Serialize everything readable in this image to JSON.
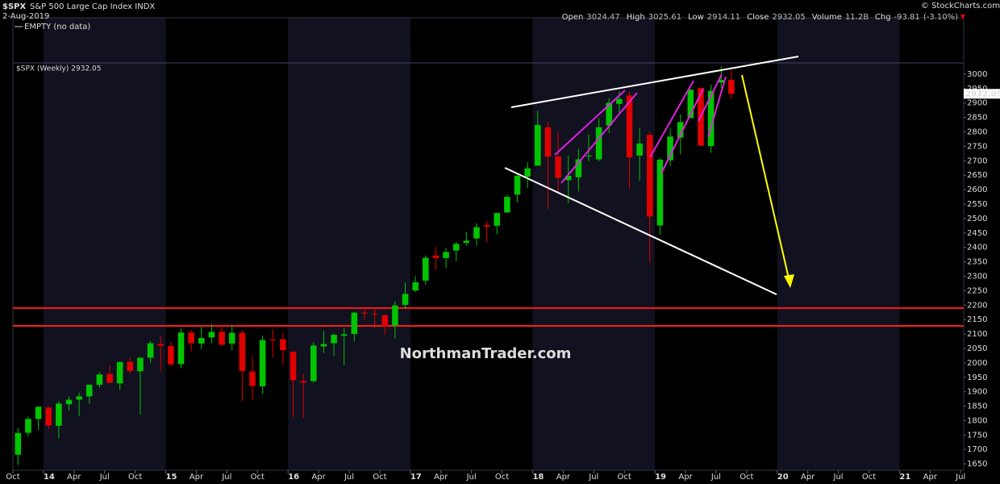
{
  "chart_data": {
    "type": "candlestick",
    "title": "$SPX",
    "subtitle": "S&P 500 Large Cap Index INDX",
    "date": "2-Aug-2019",
    "quote": [
      {
        "label": "Open",
        "value": 3024.47
      },
      {
        "label": "High",
        "value": 3025.61
      },
      {
        "label": "Low",
        "value": 2914.11
      },
      {
        "label": "Close",
        "value": 2932.05
      },
      {
        "label": "Volume",
        "value": "11.2B"
      },
      {
        "label": "Chg",
        "value": -93.81
      }
    ],
    "chg_pct": "(-3.10%)",
    "credit": "© StockCharts.com",
    "upper_panel_label": "EMPTY (no data)",
    "legend_label": "$SPX (Weekly) 2932.05",
    "watermark": "NorthmanTrader.com",
    "last_price": 2932.05,
    "up_color": "#00c400",
    "down_color": "#e00000",
    "levels": [
      2190,
      2128
    ],
    "level_color": "#ff1a1a",
    "x": [
      0,
      1,
      2,
      3,
      4,
      5,
      6,
      7,
      8,
      9,
      10,
      11,
      12,
      13,
      14,
      15,
      16,
      17,
      18,
      19,
      20,
      21,
      22,
      23,
      24,
      25,
      26,
      27,
      28,
      29,
      30,
      31,
      32,
      33,
      34,
      35,
      36,
      37,
      38,
      39,
      40,
      41,
      42,
      43,
      44,
      45,
      46,
      47,
      48,
      49,
      50,
      51,
      52,
      53,
      54,
      55,
      56,
      57,
      58,
      59,
      60,
      61,
      62,
      63,
      64,
      65,
      66,
      67,
      68,
      69,
      70
    ],
    "open": [
      1682,
      1758,
      1806,
      1845,
      1782,
      1857,
      1873,
      1884,
      1924,
      1962,
      1929,
      2004,
      1971,
      2018,
      2065,
      2058,
      1996,
      2105,
      2067,
      2088,
      2108,
      2067,
      2104,
      1970,
      1919,
      2081,
      2082,
      2039,
      1937,
      1937,
      2057,
      2068,
      2094,
      2100,
      2174,
      2171,
      2165,
      2129,
      2201,
      2251,
      2285,
      2372,
      2363,
      2389,
      2416,
      2431,
      2477,
      2475,
      2521,
      2583,
      2645,
      2683,
      2816,
      2715,
      2633,
      2643,
      2718,
      2705,
      2822,
      2897,
      2926,
      2718,
      2790,
      2476,
      2702,
      2780,
      2848,
      2952,
      2751,
      2971,
      2980
    ],
    "high": [
      1775,
      1813,
      1849,
      1850,
      1867,
      1884,
      1897,
      1924,
      1968,
      1991,
      2005,
      2019,
      2018,
      2075,
      2093,
      2072,
      2119,
      2114,
      2126,
      2135,
      2130,
      2133,
      2113,
      2021,
      2094,
      2116,
      2104,
      2039,
      1963,
      2072,
      2111,
      2103,
      2120,
      2178,
      2194,
      2188,
      2169,
      2214,
      2278,
      2301,
      2372,
      2401,
      2398,
      2419,
      2454,
      2484,
      2491,
      2520,
      2582,
      2657,
      2695,
      2873,
      2835,
      2801,
      2718,
      2742,
      2791,
      2848,
      2917,
      2941,
      2940,
      2815,
      2800,
      2708,
      2813,
      2861,
      2949,
      2954,
      2964,
      3028,
      3014
    ],
    "low": [
      1646,
      1746,
      1767,
      1770,
      1738,
      1834,
      1815,
      1859,
      1915,
      1930,
      1905,
      1964,
      1821,
      2001,
      1972,
      1988,
      1981,
      2040,
      2048,
      2068,
      2057,
      2044,
      1867,
      1872,
      1893,
      2019,
      1993,
      1812,
      1810,
      1931,
      2034,
      2025,
      1992,
      2075,
      2147,
      2120,
      2097,
      2084,
      2188,
      2245,
      2271,
      2322,
      2328,
      2353,
      2406,
      2407,
      2417,
      2446,
      2520,
      2557,
      2605,
      2683,
      2533,
      2585,
      2553,
      2594,
      2698,
      2698,
      2796,
      2864,
      2604,
      2631,
      2346,
      2444,
      2681,
      2722,
      2848,
      2751,
      2728,
      2952,
      2914
    ],
    "close": [
      1757,
      1806,
      1848,
      1783,
      1859,
      1872,
      1884,
      1924,
      1960,
      1931,
      2003,
      1972,
      2018,
      2068,
      2059,
      1995,
      2105,
      2068,
      2086,
      2107,
      2063,
      2104,
      1972,
      1920,
      2079,
      2080,
      2044,
      1940,
      1932,
      2060,
      2065,
      2097,
      2099,
      2174,
      2171,
      2168,
      2126,
      2199,
      2239,
      2279,
      2364,
      2363,
      2384,
      2412,
      2423,
      2470,
      2472,
      2519,
      2575,
      2648,
      2674,
      2824,
      2714,
      2641,
      2648,
      2705,
      2718,
      2816,
      2901,
      2914,
      2712,
      2760,
      2507,
      2704,
      2784,
      2834,
      2946,
      2752,
      2942,
      2980,
      2932
    ],
    "xlim": [
      0,
      93.3
    ],
    "ylim": [
      1628,
      3039
    ],
    "xticks": [
      {
        "value": 0,
        "label": "Oct"
      },
      {
        "value": 3,
        "label": "14"
      },
      {
        "value": 6,
        "label": "Apr"
      },
      {
        "value": 9,
        "label": "Jul"
      },
      {
        "value": 12,
        "label": "Oct"
      },
      {
        "value": 15,
        "label": "15"
      },
      {
        "value": 18,
        "label": "Apr"
      },
      {
        "value": 21,
        "label": "Jul"
      },
      {
        "value": 24,
        "label": "Oct"
      },
      {
        "value": 27,
        "label": "16"
      },
      {
        "value": 30,
        "label": "Apr"
      },
      {
        "value": 33,
        "label": "Jul"
      },
      {
        "value": 36,
        "label": "Oct"
      },
      {
        "value": 39,
        "label": "17"
      },
      {
        "value": 42,
        "label": "Apr"
      },
      {
        "value": 45,
        "label": "Jul"
      },
      {
        "value": 48,
        "label": "Oct"
      },
      {
        "value": 51,
        "label": "18"
      },
      {
        "value": 54,
        "label": "Apr"
      },
      {
        "value": 57,
        "label": "Jul"
      },
      {
        "value": 60,
        "label": "Oct"
      },
      {
        "value": 63,
        "label": "19"
      },
      {
        "value": 66,
        "label": "Apr"
      },
      {
        "value": 69,
        "label": "Jul"
      },
      {
        "value": 72,
        "label": "Oct"
      },
      {
        "value": 75,
        "label": "20"
      },
      {
        "value": 78,
        "label": "Apr"
      },
      {
        "value": 81,
        "label": "Jul"
      },
      {
        "value": 84,
        "label": "Oct"
      },
      {
        "value": 87,
        "label": "21"
      },
      {
        "value": 90,
        "label": "Apr"
      },
      {
        "value": 93,
        "label": "Jul"
      }
    ],
    "yticks": [
      1650,
      1700,
      1750,
      1800,
      1850,
      1900,
      1950,
      2000,
      2050,
      2100,
      2150,
      2200,
      2250,
      2300,
      2350,
      2400,
      2450,
      2500,
      2550,
      2600,
      2650,
      2700,
      2750,
      2800,
      2850,
      2900,
      2950,
      3000
    ]
  }
}
